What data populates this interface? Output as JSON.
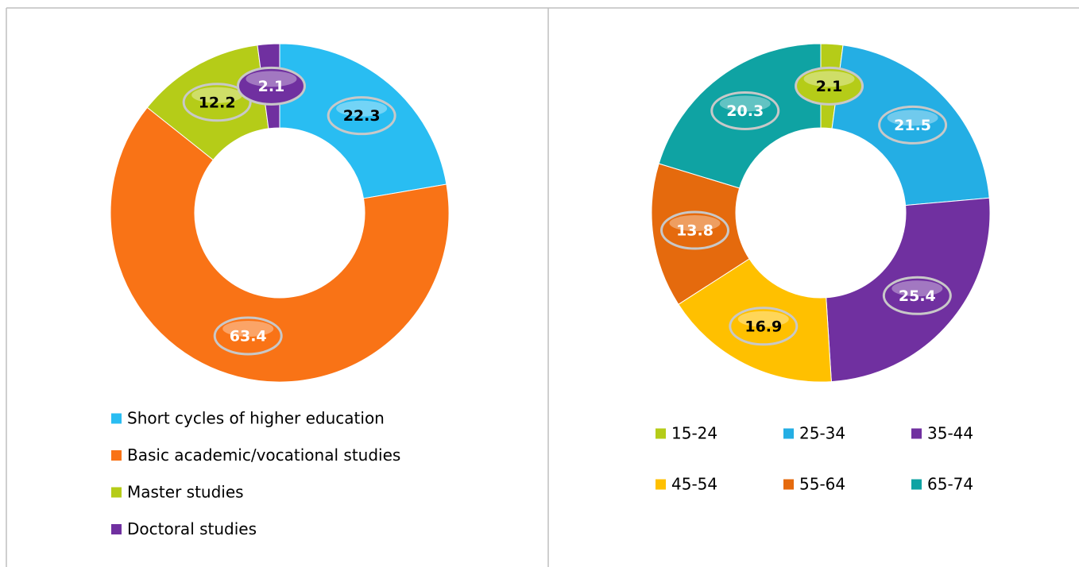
{
  "chart_data": [
    {
      "type": "donut",
      "categories": [
        "Short cycles of higher education",
        "Basic academic/vocational studies",
        "Master studies",
        "Doctoral studies"
      ],
      "values": [
        22.3,
        63.4,
        12.2,
        2.1
      ],
      "colors": [
        "#29bdf2",
        "#f97316",
        "#b5cc18",
        "#7030a0"
      ]
    },
    {
      "type": "donut",
      "categories": [
        "15-24",
        "25-34",
        "35-44",
        "45-54",
        "55-64",
        "65-74"
      ],
      "values": [
        2.1,
        21.5,
        25.4,
        16.9,
        13.8,
        20.3
      ],
      "colors": [
        "#b5cc18",
        "#24aee4",
        "#7030a0",
        "#ffc000",
        "#e56a0d",
        "#0fa3a3"
      ]
    }
  ]
}
